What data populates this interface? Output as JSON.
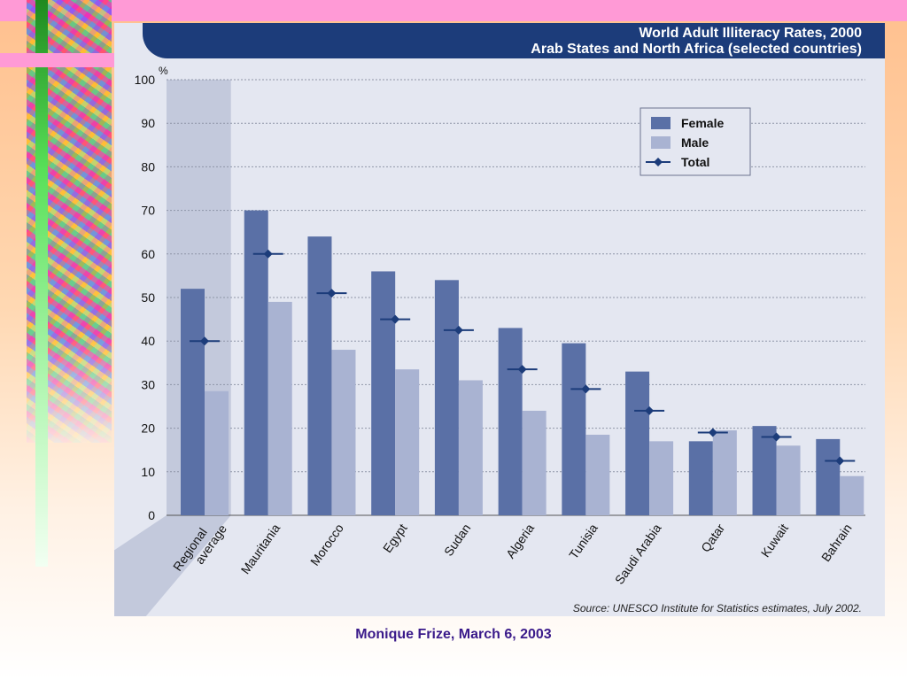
{
  "chart_data": {
    "type": "bar",
    "title": "World Adult Illiteracy Rates, 2000",
    "subtitle": "Arab States and North Africa (selected countries)",
    "ylabel": "%",
    "ylim": [
      0,
      100
    ],
    "yticks": [
      0,
      10,
      20,
      30,
      40,
      50,
      60,
      70,
      80,
      90,
      100
    ],
    "grid": true,
    "legend_position": "top-right",
    "categories": [
      "Regional average",
      "Mauritania",
      "Morocco",
      "Egypt",
      "Sudan",
      "Algeria",
      "Tunisia",
      "Saudi Arabia",
      "Qatar",
      "Kuwait",
      "Bahrain"
    ],
    "series": [
      {
        "name": "Female",
        "kind": "bar",
        "color": "#5a70a6",
        "values": [
          52,
          70,
          64,
          56,
          54,
          43,
          39.5,
          33,
          17,
          20.5,
          17.5
        ]
      },
      {
        "name": "Male",
        "kind": "bar",
        "color": "#a9b3d2",
        "values": [
          28.5,
          49,
          38,
          33.5,
          31,
          24,
          18.5,
          17,
          19.5,
          16,
          9
        ]
      },
      {
        "name": "Total",
        "kind": "marker",
        "color": "#1c3c7a",
        "values": [
          40,
          60,
          51,
          45,
          42.5,
          33.5,
          29,
          24,
          19,
          18,
          12.5
        ]
      }
    ],
    "source": "Source: UNESCO Institute for Statistics estimates, July 2002."
  },
  "footer": {
    "text": "Monique Frize, March 6, 2003"
  }
}
